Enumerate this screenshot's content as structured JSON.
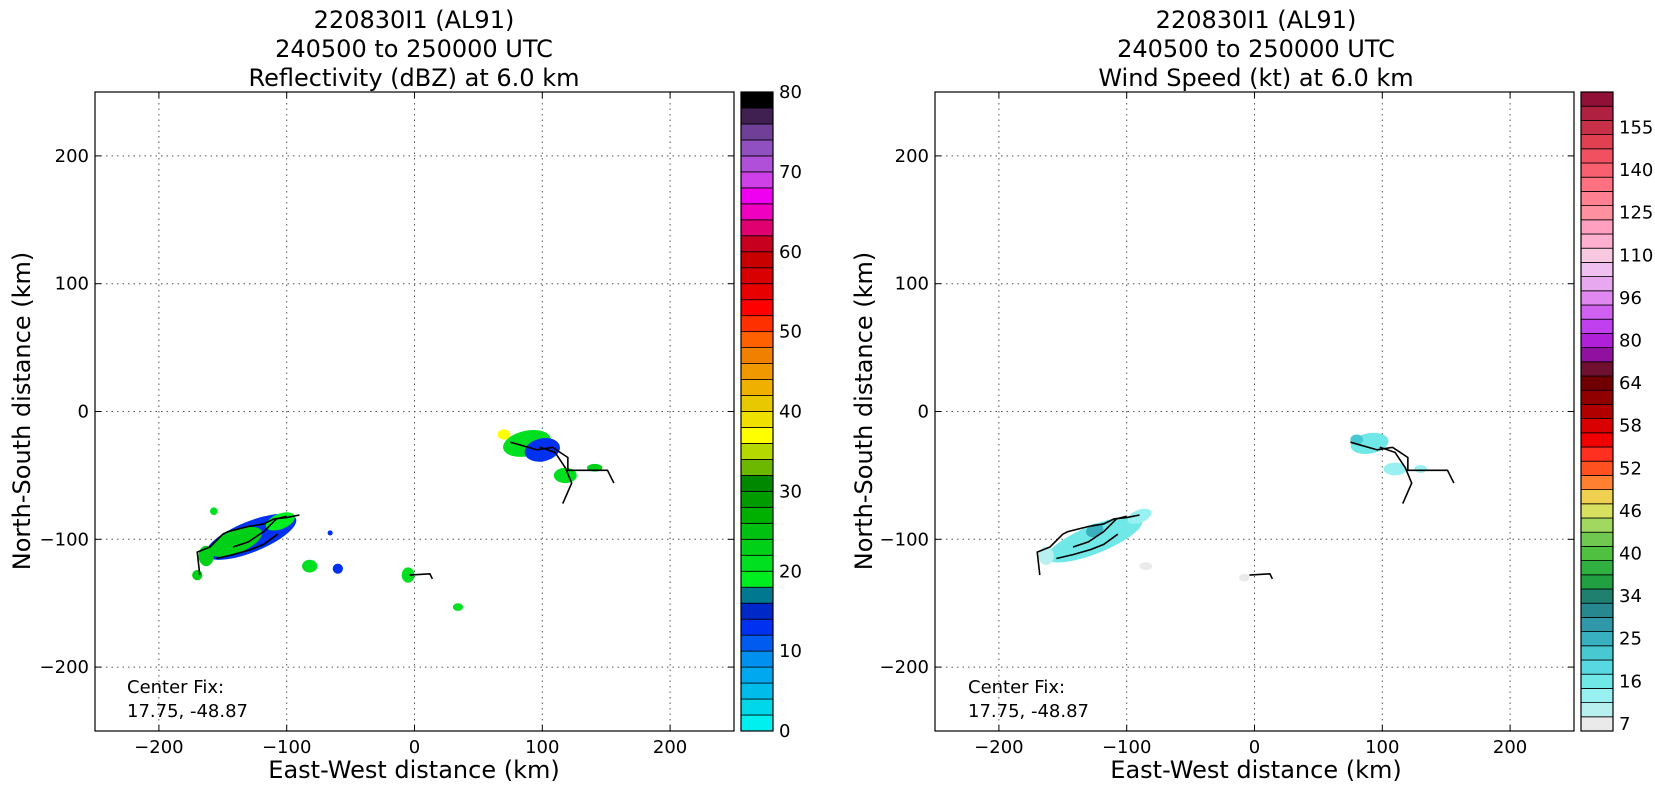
{
  "panels": [
    {
      "title_lines": [
        "220830I1 (AL91)",
        "240500 to 250000 UTC",
        "Reflectivity (dBZ) at 6.0 km"
      ],
      "xlabel": "East-West distance (km)",
      "ylabel": "North-South distance (km)",
      "xticks": [
        -200,
        -100,
        0,
        100,
        200
      ],
      "yticks": [
        200,
        100,
        0,
        -100,
        -200
      ],
      "xlim": [
        -250,
        250
      ],
      "ylim": [
        -250,
        250
      ],
      "grid": true,
      "annotation_lines": [
        "Center Fix:",
        "17.75, -48.87"
      ],
      "colorbar": {
        "min": 0,
        "max": 80,
        "colors": [
          "#00efef",
          "#00d8ea",
          "#00bcea",
          "#00a8f0",
          "#0090f0",
          "#005cf0",
          "#0030f0",
          "#0028c8",
          "#007890",
          "#00ee20",
          "#00e020",
          "#00d018",
          "#00c010",
          "#00b000",
          "#009c00",
          "#008800",
          "#6cb800",
          "#b4d800",
          "#ffff00",
          "#f0e000",
          "#e8c800",
          "#f0b000",
          "#f09800",
          "#f08000",
          "#ff6000",
          "#ff3000",
          "#ff0000",
          "#e80000",
          "#d80000",
          "#c80000",
          "#c80020",
          "#e00070",
          "#f000c0",
          "#f000f0",
          "#d040e8",
          "#b050d8",
          "#9050c0",
          "#704098",
          "#402050",
          "#000000"
        ],
        "ticks": [
          0,
          10,
          20,
          30,
          40,
          50,
          60,
          70,
          80
        ],
        "tick_labels": [
          "0",
          "10",
          "20",
          "30",
          "40",
          "50",
          "60",
          "70",
          "80"
        ]
      }
    },
    {
      "title_lines": [
        "220830I1 (AL91)",
        "240500 to 250000 UTC",
        "Wind Speed (kt) at 6.0 km"
      ],
      "xlabel": "East-West distance (km)",
      "ylabel": "North-South distance (km)",
      "xticks": [
        -200,
        -100,
        0,
        100,
        200
      ],
      "yticks": [
        200,
        100,
        0,
        -100,
        -200
      ],
      "xlim": [
        -250,
        250
      ],
      "ylim": [
        -250,
        250
      ],
      "grid": true,
      "annotation_lines": [
        "Center Fix:",
        "17.75, -48.87"
      ],
      "colorbar": {
        "colors": [
          "#eaeaea",
          "#b8f0f0",
          "#98f0f0",
          "#70e8e8",
          "#58d8e0",
          "#48c8d0",
          "#38b0c0",
          "#3098a8",
          "#288890",
          "#208070",
          "#20a040",
          "#30b040",
          "#50c040",
          "#70c850",
          "#a0d860",
          "#d8e060",
          "#f0d050",
          "#ff8030",
          "#ff5020",
          "#ff3020",
          "#f00000",
          "#d80000",
          "#b00000",
          "#900000",
          "#700000",
          "#701030",
          "#9010a0",
          "#b020d8",
          "#c040f0",
          "#d060f0",
          "#e088f0",
          "#e8a8f0",
          "#f0c0f0",
          "#f8c8e0",
          "#ffb0d0",
          "#ffa0c0",
          "#ff90a0",
          "#ff8090",
          "#ff7080",
          "#f86070",
          "#f05060",
          "#e04050",
          "#c83048",
          "#b02040",
          "#901038"
        ],
        "tick_labels": [
          "7",
          "16",
          "25",
          "34",
          "40",
          "46",
          "52",
          "58",
          "64",
          "80",
          "96",
          "110",
          "125",
          "140",
          "155"
        ],
        "tick_segments": [
          0,
          3,
          6,
          9,
          12,
          15,
          18,
          21,
          24,
          27,
          30,
          33,
          36,
          39,
          42
        ]
      }
    }
  ],
  "chart_data": [
    {
      "type": "heatmap",
      "title": "220830I1 (AL91) 240500 to 250000 UTC Reflectivity (dBZ) at 6.0 km",
      "xlabel": "East-West distance (km)",
      "ylabel": "North-South distance (km)",
      "xlim": [
        -250,
        250
      ],
      "ylim": [
        -250,
        250
      ],
      "grid": true,
      "colorbar_range": [
        0,
        80
      ],
      "echo_cells": [
        {
          "x": -128,
          "y": -98,
          "rx": 38,
          "ry": 12,
          "angle": 22,
          "value": 12
        },
        {
          "x": -140,
          "y": -102,
          "rx": 22,
          "ry": 9,
          "angle": 22,
          "value": 22
        },
        {
          "x": -105,
          "y": -86,
          "rx": 12,
          "ry": 6,
          "angle": 22,
          "value": 18
        },
        {
          "x": -163,
          "y": -113,
          "rx": 6,
          "ry": 8,
          "angle": 0,
          "value": 22
        },
        {
          "x": -170,
          "y": -128,
          "rx": 4,
          "ry": 4,
          "angle": 0,
          "value": 22
        },
        {
          "x": -157,
          "y": -78,
          "rx": 3,
          "ry": 3,
          "angle": 0,
          "value": 20
        },
        {
          "x": -82,
          "y": -121,
          "rx": 6,
          "ry": 5,
          "angle": 0,
          "value": 20
        },
        {
          "x": -60,
          "y": -123,
          "rx": 4,
          "ry": 4,
          "angle": 0,
          "value": 12
        },
        {
          "x": -66,
          "y": -95,
          "rx": 2,
          "ry": 2,
          "angle": 0,
          "value": 12
        },
        {
          "x": -5,
          "y": -128,
          "rx": 5,
          "ry": 6,
          "angle": 0,
          "value": 20
        },
        {
          "x": 34,
          "y": -153,
          "rx": 4,
          "ry": 3,
          "angle": 0,
          "value": 20
        },
        {
          "x": 88,
          "y": -25,
          "rx": 19,
          "ry": 10,
          "angle": 12,
          "value": 20
        },
        {
          "x": 100,
          "y": -30,
          "rx": 14,
          "ry": 9,
          "angle": 12,
          "value": 12
        },
        {
          "x": 118,
          "y": -50,
          "rx": 9,
          "ry": 6,
          "angle": 0,
          "value": 20
        },
        {
          "x": 141,
          "y": -44,
          "rx": 6,
          "ry": 3,
          "angle": 0,
          "value": 22
        },
        {
          "x": 70,
          "y": -18,
          "rx": 5,
          "ry": 4,
          "angle": 0,
          "value": 36
        }
      ]
    },
    {
      "type": "heatmap",
      "title": "220830I1 (AL91) 240500 to 250000 UTC Wind Speed (kt) at 6.0 km",
      "xlabel": "East-West distance (km)",
      "ylabel": "North-South distance (km)",
      "xlim": [
        -250,
        250
      ],
      "ylim": [
        -250,
        250
      ],
      "grid": true,
      "colorbar_range": [
        7,
        155
      ],
      "wind_cells": [
        {
          "x": -125,
          "y": -100,
          "rx": 40,
          "ry": 11,
          "angle": 22,
          "value": 16
        },
        {
          "x": -125,
          "y": -93,
          "rx": 7,
          "ry": 5,
          "angle": 22,
          "value": 25
        },
        {
          "x": -90,
          "y": -82,
          "rx": 10,
          "ry": 5,
          "angle": 22,
          "value": 14
        },
        {
          "x": -163,
          "y": -113,
          "rx": 6,
          "ry": 7,
          "angle": 0,
          "value": 12
        },
        {
          "x": -85,
          "y": -121,
          "rx": 5,
          "ry": 3,
          "angle": 0,
          "value": 7
        },
        {
          "x": -8,
          "y": -130,
          "rx": 4,
          "ry": 3,
          "angle": 0,
          "value": 7
        },
        {
          "x": 90,
          "y": -25,
          "rx": 15,
          "ry": 8,
          "angle": 10,
          "value": 16
        },
        {
          "x": 80,
          "y": -22,
          "rx": 5,
          "ry": 4,
          "angle": 0,
          "value": 22
        },
        {
          "x": 110,
          "y": -45,
          "rx": 9,
          "ry": 5,
          "angle": 0,
          "value": 14
        },
        {
          "x": 130,
          "y": -45,
          "rx": 5,
          "ry": 3,
          "angle": 0,
          "value": 14
        }
      ]
    }
  ],
  "flight_tracks": [
    [
      [
        -168,
        -128
      ],
      [
        -170,
        -110
      ],
      [
        -160,
        -106
      ],
      [
        -150,
        -96
      ],
      [
        -146,
        -94
      ],
      [
        -130,
        -90
      ],
      [
        -118,
        -88
      ],
      [
        -110,
        -84
      ],
      [
        -100,
        -83
      ],
      [
        -90,
        -81
      ]
    ],
    [
      [
        -142,
        -106
      ],
      [
        -130,
        -102
      ],
      [
        -118,
        -94
      ],
      [
        -108,
        -84
      ],
      [
        -100,
        -82
      ]
    ],
    [
      [
        -155,
        -115
      ],
      [
        -142,
        -112
      ],
      [
        -128,
        -108
      ],
      [
        -118,
        -104
      ],
      [
        -107,
        -96
      ]
    ],
    [
      [
        -4,
        -128
      ],
      [
        12,
        -127
      ],
      [
        14,
        -131
      ]
    ],
    [
      [
        75,
        -24
      ],
      [
        96,
        -30
      ],
      [
        108,
        -28
      ],
      [
        120,
        -36
      ],
      [
        120,
        -46
      ],
      [
        133,
        -46
      ],
      [
        151,
        -46
      ],
      [
        156,
        -56
      ]
    ],
    [
      [
        98,
        -28
      ],
      [
        110,
        -32
      ],
      [
        118,
        -44
      ],
      [
        123,
        -56
      ],
      [
        116,
        -72
      ]
    ]
  ]
}
